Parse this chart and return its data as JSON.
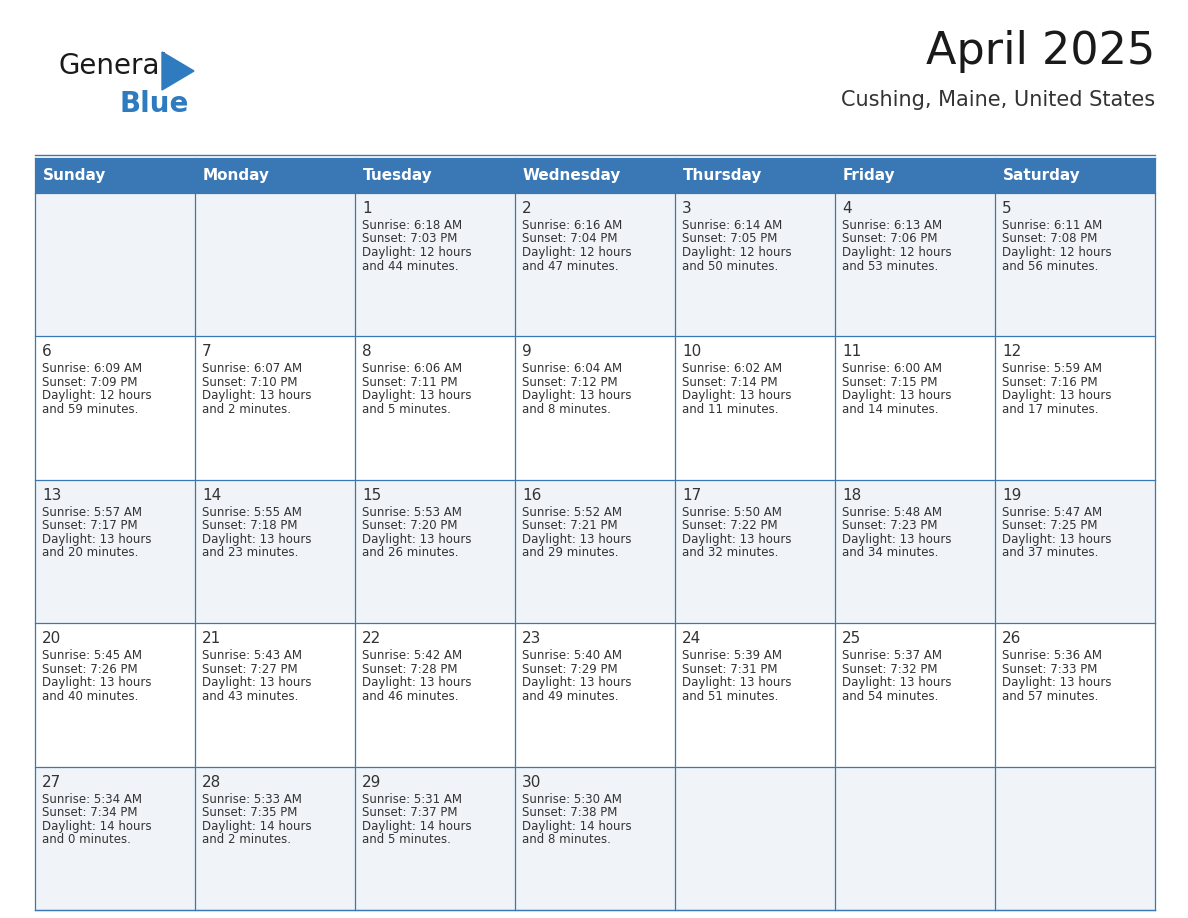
{
  "title": "April 2025",
  "subtitle": "Cushing, Maine, United States",
  "header_bg_color": "#3a78b5",
  "header_text_color": "#ffffff",
  "row_bg_even": "#f0f4f8",
  "row_bg_odd": "#ffffff",
  "border_color": "#3a78b5",
  "text_color": "#333333",
  "day_number_color": "#333333",
  "days_of_week": [
    "Sunday",
    "Monday",
    "Tuesday",
    "Wednesday",
    "Thursday",
    "Friday",
    "Saturday"
  ],
  "weeks": [
    [
      {
        "day": "",
        "info": ""
      },
      {
        "day": "",
        "info": ""
      },
      {
        "day": "1",
        "info": "Sunrise: 6:18 AM\nSunset: 7:03 PM\nDaylight: 12 hours\nand 44 minutes."
      },
      {
        "day": "2",
        "info": "Sunrise: 6:16 AM\nSunset: 7:04 PM\nDaylight: 12 hours\nand 47 minutes."
      },
      {
        "day": "3",
        "info": "Sunrise: 6:14 AM\nSunset: 7:05 PM\nDaylight: 12 hours\nand 50 minutes."
      },
      {
        "day": "4",
        "info": "Sunrise: 6:13 AM\nSunset: 7:06 PM\nDaylight: 12 hours\nand 53 minutes."
      },
      {
        "day": "5",
        "info": "Sunrise: 6:11 AM\nSunset: 7:08 PM\nDaylight: 12 hours\nand 56 minutes."
      }
    ],
    [
      {
        "day": "6",
        "info": "Sunrise: 6:09 AM\nSunset: 7:09 PM\nDaylight: 12 hours\nand 59 minutes."
      },
      {
        "day": "7",
        "info": "Sunrise: 6:07 AM\nSunset: 7:10 PM\nDaylight: 13 hours\nand 2 minutes."
      },
      {
        "day": "8",
        "info": "Sunrise: 6:06 AM\nSunset: 7:11 PM\nDaylight: 13 hours\nand 5 minutes."
      },
      {
        "day": "9",
        "info": "Sunrise: 6:04 AM\nSunset: 7:12 PM\nDaylight: 13 hours\nand 8 minutes."
      },
      {
        "day": "10",
        "info": "Sunrise: 6:02 AM\nSunset: 7:14 PM\nDaylight: 13 hours\nand 11 minutes."
      },
      {
        "day": "11",
        "info": "Sunrise: 6:00 AM\nSunset: 7:15 PM\nDaylight: 13 hours\nand 14 minutes."
      },
      {
        "day": "12",
        "info": "Sunrise: 5:59 AM\nSunset: 7:16 PM\nDaylight: 13 hours\nand 17 minutes."
      }
    ],
    [
      {
        "day": "13",
        "info": "Sunrise: 5:57 AM\nSunset: 7:17 PM\nDaylight: 13 hours\nand 20 minutes."
      },
      {
        "day": "14",
        "info": "Sunrise: 5:55 AM\nSunset: 7:18 PM\nDaylight: 13 hours\nand 23 minutes."
      },
      {
        "day": "15",
        "info": "Sunrise: 5:53 AM\nSunset: 7:20 PM\nDaylight: 13 hours\nand 26 minutes."
      },
      {
        "day": "16",
        "info": "Sunrise: 5:52 AM\nSunset: 7:21 PM\nDaylight: 13 hours\nand 29 minutes."
      },
      {
        "day": "17",
        "info": "Sunrise: 5:50 AM\nSunset: 7:22 PM\nDaylight: 13 hours\nand 32 minutes."
      },
      {
        "day": "18",
        "info": "Sunrise: 5:48 AM\nSunset: 7:23 PM\nDaylight: 13 hours\nand 34 minutes."
      },
      {
        "day": "19",
        "info": "Sunrise: 5:47 AM\nSunset: 7:25 PM\nDaylight: 13 hours\nand 37 minutes."
      }
    ],
    [
      {
        "day": "20",
        "info": "Sunrise: 5:45 AM\nSunset: 7:26 PM\nDaylight: 13 hours\nand 40 minutes."
      },
      {
        "day": "21",
        "info": "Sunrise: 5:43 AM\nSunset: 7:27 PM\nDaylight: 13 hours\nand 43 minutes."
      },
      {
        "day": "22",
        "info": "Sunrise: 5:42 AM\nSunset: 7:28 PM\nDaylight: 13 hours\nand 46 minutes."
      },
      {
        "day": "23",
        "info": "Sunrise: 5:40 AM\nSunset: 7:29 PM\nDaylight: 13 hours\nand 49 minutes."
      },
      {
        "day": "24",
        "info": "Sunrise: 5:39 AM\nSunset: 7:31 PM\nDaylight: 13 hours\nand 51 minutes."
      },
      {
        "day": "25",
        "info": "Sunrise: 5:37 AM\nSunset: 7:32 PM\nDaylight: 13 hours\nand 54 minutes."
      },
      {
        "day": "26",
        "info": "Sunrise: 5:36 AM\nSunset: 7:33 PM\nDaylight: 13 hours\nand 57 minutes."
      }
    ],
    [
      {
        "day": "27",
        "info": "Sunrise: 5:34 AM\nSunset: 7:34 PM\nDaylight: 14 hours\nand 0 minutes."
      },
      {
        "day": "28",
        "info": "Sunrise: 5:33 AM\nSunset: 7:35 PM\nDaylight: 14 hours\nand 2 minutes."
      },
      {
        "day": "29",
        "info": "Sunrise: 5:31 AM\nSunset: 7:37 PM\nDaylight: 14 hours\nand 5 minutes."
      },
      {
        "day": "30",
        "info": "Sunrise: 5:30 AM\nSunset: 7:38 PM\nDaylight: 14 hours\nand 8 minutes."
      },
      {
        "day": "",
        "info": ""
      },
      {
        "day": "",
        "info": ""
      },
      {
        "day": "",
        "info": ""
      }
    ]
  ],
  "logo_color1": "#1a1a1a",
  "logo_color2": "#2e7bbf",
  "logo_triangle_color": "#2e7bbf",
  "title_fontsize": 32,
  "subtitle_fontsize": 15,
  "header_fontsize": 11,
  "day_num_fontsize": 11,
  "info_fontsize": 8.5
}
